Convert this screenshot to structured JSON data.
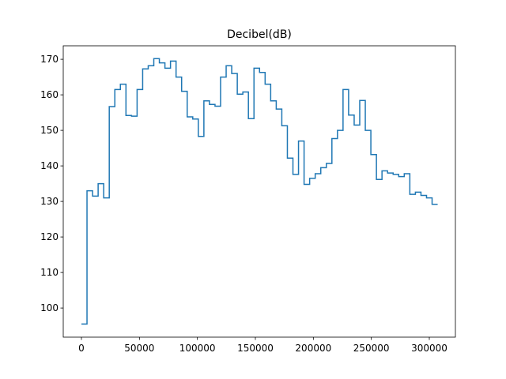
{
  "chart_data": {
    "type": "step",
    "title": "Decibel(dB)",
    "color": "#1f77b4",
    "x": [
      0,
      4800,
      9600,
      14400,
      19200,
      24000,
      28800,
      33600,
      38400,
      43200,
      48000,
      52800,
      57600,
      62400,
      67200,
      72000,
      76800,
      81600,
      86400,
      91200,
      96000,
      100800,
      105600,
      110400,
      115200,
      120000,
      124800,
      129600,
      134400,
      139200,
      144000,
      148800,
      153600,
      158400,
      163200,
      168000,
      172800,
      177600,
      182400,
      187200,
      192000,
      196800,
      201600,
      206400,
      211200,
      216000,
      220800,
      225600,
      230400,
      235200,
      240000,
      244800,
      249600,
      254400,
      259200,
      264000,
      268800,
      273600,
      278400,
      283200,
      288000,
      292800,
      297600,
      302400,
      307200
    ],
    "values": [
      95.5,
      133,
      131.5,
      135,
      131,
      156.7,
      161.5,
      163,
      154.2,
      154,
      161.5,
      167.3,
      168.2,
      170.2,
      169,
      167.5,
      169.5,
      165,
      161,
      153.8,
      153.2,
      148.3,
      158.3,
      157.3,
      156.8,
      165,
      168.2,
      166,
      160.2,
      160.8,
      153.3,
      167.5,
      166.3,
      163,
      158.3,
      156,
      151.3,
      142.2,
      137.6,
      147,
      134.8,
      136.5,
      137.8,
      139.5,
      140.7,
      147.7,
      150,
      161.5,
      154.3,
      151.5,
      158.4,
      150,
      143.2,
      136.2,
      138.6,
      138,
      137.6,
      137,
      137.8,
      132,
      132.6,
      131.7,
      131,
      129.2,
      129.2
    ],
    "xlim": [
      -15682,
      322500
    ],
    "ylim": [
      91.8,
      173.8
    ],
    "xticks": [
      0,
      50000,
      100000,
      150000,
      200000,
      250000,
      300000
    ],
    "yticks": [
      100,
      110,
      120,
      130,
      140,
      150,
      160,
      170
    ]
  }
}
